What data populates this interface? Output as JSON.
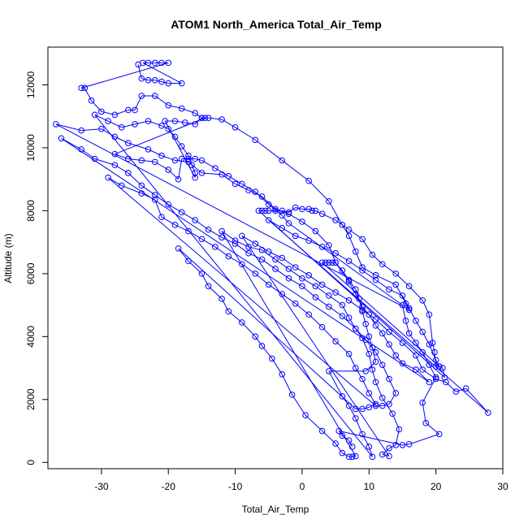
{
  "chart_data": {
    "type": "scatter",
    "title": "ATOM1 North_America Total_Air_Temp",
    "xlabel": "Total_Air_Temp",
    "ylabel": "Altitude (m)",
    "xlim": [
      -38,
      30
    ],
    "ylim": [
      -200,
      13200
    ],
    "x_ticks": [
      -30,
      -20,
      -10,
      0,
      10,
      20,
      30
    ],
    "y_ticks": [
      0,
      2000,
      4000,
      6000,
      8000,
      10000,
      12000
    ],
    "grid": false,
    "legend": "none",
    "series": [
      {
        "color": "#0000ff",
        "marker": "open-circle",
        "line": true,
        "points": [
          [
            -24.5,
            12650
          ],
          [
            -24,
            12200
          ],
          [
            -23,
            12150
          ],
          [
            -22,
            12150
          ],
          [
            -21,
            12100
          ],
          [
            -20,
            12050
          ],
          [
            -18,
            12050
          ],
          [
            -23.8,
            12700
          ],
          [
            -23,
            12700
          ],
          [
            -22,
            12700
          ],
          [
            -21,
            12700
          ],
          [
            -20,
            12700
          ],
          [
            -33,
            11900
          ],
          [
            -32.5,
            11900
          ],
          [
            -31.5,
            11500
          ],
          [
            -30,
            11150
          ],
          [
            -28,
            11050
          ],
          [
            -26,
            11200
          ],
          [
            -25,
            11200
          ],
          [
            -24,
            11650
          ],
          [
            -22,
            11650
          ],
          [
            -20,
            11350
          ],
          [
            -18,
            11250
          ],
          [
            -16,
            11100
          ],
          [
            -15,
            10950
          ],
          [
            -14,
            10950
          ],
          [
            -12,
            10900
          ],
          [
            -10,
            10650
          ],
          [
            -7,
            10250
          ],
          [
            -3,
            9600
          ],
          [
            1,
            8950
          ],
          [
            4,
            8300
          ],
          [
            6,
            7550
          ],
          [
            7,
            7200
          ],
          [
            8,
            6700
          ],
          [
            9,
            6200
          ],
          [
            11,
            5950
          ],
          [
            14,
            5650
          ],
          [
            15.5,
            5050
          ],
          [
            16,
            4850
          ],
          [
            -36.8,
            10750
          ],
          [
            -33,
            10550
          ],
          [
            -30,
            10600
          ],
          [
            -28,
            10350
          ],
          [
            -26,
            10150
          ],
          [
            -23,
            9950
          ],
          [
            -21,
            9750
          ],
          [
            -19,
            9600
          ],
          [
            -17,
            9550
          ],
          [
            -15,
            9200
          ],
          [
            -12,
            9150
          ],
          [
            -10,
            8850
          ],
          [
            -8,
            8650
          ],
          [
            -6,
            8450
          ],
          [
            -4,
            8050
          ],
          [
            -2,
            7900
          ],
          [
            0,
            7650
          ],
          [
            2,
            7350
          ],
          [
            4,
            6900
          ],
          [
            5,
            6350
          ],
          [
            7,
            5750
          ],
          [
            8,
            5350
          ],
          [
            9,
            4950
          ],
          [
            10,
            4700
          ],
          [
            11,
            4350
          ],
          [
            12,
            4100
          ],
          [
            13,
            3750
          ],
          [
            14,
            3400
          ],
          [
            15,
            3150
          ],
          [
            17,
            2950
          ],
          [
            19,
            2550
          ],
          [
            -36,
            10300
          ],
          [
            -33,
            9950
          ],
          [
            -31,
            9650
          ],
          [
            -28,
            9450
          ],
          [
            -26,
            9200
          ],
          [
            -24,
            8800
          ],
          [
            -22,
            8500
          ],
          [
            -20,
            8200
          ],
          [
            -18,
            7950
          ],
          [
            -16,
            7700
          ],
          [
            -14,
            7400
          ],
          [
            -12,
            7150
          ],
          [
            -10,
            6950
          ],
          [
            -8,
            6650
          ],
          [
            -6,
            6450
          ],
          [
            -4,
            6150
          ],
          [
            -2,
            5850
          ],
          [
            0,
            5600
          ],
          [
            2,
            5250
          ],
          [
            4,
            4950
          ],
          [
            6,
            4650
          ],
          [
            8,
            4250
          ],
          [
            9.5,
            3900
          ],
          [
            11,
            3500
          ],
          [
            12,
            3100
          ],
          [
            13,
            2650
          ],
          [
            14,
            2200
          ],
          [
            13,
            1850
          ],
          [
            12,
            1800
          ],
          [
            11,
            1800
          ],
          [
            -29,
            9050
          ],
          [
            -27,
            8800
          ],
          [
            -24,
            8550
          ],
          [
            -22,
            8350
          ],
          [
            -21,
            7800
          ],
          [
            -19,
            7550
          ],
          [
            -17,
            7350
          ],
          [
            -15,
            7100
          ],
          [
            -13,
            6850
          ],
          [
            -11,
            6550
          ],
          [
            -9,
            6300
          ],
          [
            -7,
            6000
          ],
          [
            -5,
            5650
          ],
          [
            -3,
            5350
          ],
          [
            -1,
            5050
          ],
          [
            1,
            4700
          ],
          [
            3,
            4300
          ],
          [
            5,
            3850
          ],
          [
            7,
            3450
          ],
          [
            8,
            3000
          ],
          [
            9,
            2650
          ],
          [
            10,
            2200
          ],
          [
            11,
            1850
          ],
          [
            10,
            1750
          ],
          [
            9,
            1700
          ],
          [
            8,
            1700
          ],
          [
            -18.5,
            6800
          ],
          [
            -17,
            6400
          ],
          [
            -15,
            6000
          ],
          [
            -14,
            5600
          ],
          [
            -12,
            5200
          ],
          [
            -11,
            4800
          ],
          [
            -9,
            4450
          ],
          [
            -7,
            4000
          ],
          [
            -6,
            3700
          ],
          [
            -4.5,
            3300
          ],
          [
            -3,
            2800
          ],
          [
            -1.5,
            2150
          ],
          [
            0.5,
            1500
          ],
          [
            3,
            1000
          ],
          [
            5,
            600
          ],
          [
            6,
            300
          ],
          [
            7,
            180
          ],
          [
            7.5,
            180
          ],
          [
            8,
            200
          ],
          [
            -12,
            7350
          ],
          [
            -10,
            7050
          ],
          [
            -8,
            6850
          ],
          [
            -6,
            6750
          ],
          [
            -4,
            6450
          ],
          [
            -2,
            6150
          ],
          [
            0,
            5850
          ],
          [
            2,
            5600
          ],
          [
            4,
            5300
          ],
          [
            6,
            5000
          ],
          [
            7,
            4600
          ],
          [
            8,
            4250
          ],
          [
            9,
            3950
          ],
          [
            10,
            3450
          ],
          [
            10.5,
            2950
          ],
          [
            11,
            2550
          ],
          [
            12,
            2050
          ],
          [
            13.5,
            1550
          ],
          [
            14.5,
            1050
          ],
          [
            14,
            550
          ],
          [
            13,
            450
          ],
          [
            12,
            250
          ],
          [
            13,
            200
          ],
          [
            -9,
            7200
          ],
          [
            -7,
            6950
          ],
          [
            -5,
            6700
          ],
          [
            -3,
            6500
          ],
          [
            -1,
            6200
          ],
          [
            1,
            5950
          ],
          [
            3,
            5650
          ],
          [
            5,
            5400
          ],
          [
            7,
            5150
          ],
          [
            9,
            4850
          ],
          [
            11,
            4550
          ],
          [
            13,
            4150
          ],
          [
            15,
            3800
          ],
          [
            17,
            3400
          ],
          [
            18,
            2950
          ],
          [
            20,
            2650
          ],
          [
            21.5,
            2550
          ],
          [
            23,
            2250
          ],
          [
            24.5,
            2350
          ],
          [
            27.8,
            1580
          ],
          [
            -5,
            7700
          ],
          [
            -3,
            7450
          ],
          [
            -1,
            7200
          ],
          [
            1,
            7050
          ],
          [
            3,
            6850
          ],
          [
            5,
            6650
          ],
          [
            7,
            6400
          ],
          [
            9,
            6100
          ],
          [
            11,
            5800
          ],
          [
            13,
            5500
          ],
          [
            15,
            5300
          ],
          [
            16,
            4900
          ],
          [
            17,
            4500
          ],
          [
            18,
            4150
          ],
          [
            19,
            3750
          ],
          [
            20,
            3250
          ],
          [
            20.5,
            3050
          ],
          [
            21,
            3000
          ],
          [
            21.3,
            2700
          ],
          [
            -6.5,
            8000
          ],
          [
            -6,
            8000
          ],
          [
            -5.5,
            8000
          ],
          [
            -5,
            8000
          ],
          [
            -4,
            8000
          ],
          [
            -3,
            8000
          ],
          [
            -2,
            7950
          ],
          [
            -1,
            8100
          ],
          [
            0,
            8050
          ],
          [
            1,
            8050
          ],
          [
            1.5,
            8000
          ],
          [
            2,
            8000
          ],
          [
            3,
            7900
          ],
          [
            5,
            7700
          ],
          [
            7,
            7400
          ],
          [
            9,
            7100
          ],
          [
            10.5,
            6600
          ],
          [
            12,
            6300
          ],
          [
            14,
            6000
          ],
          [
            16,
            5600
          ],
          [
            18,
            5150
          ],
          [
            19,
            4700
          ],
          [
            19.5,
            3800
          ],
          [
            19.8,
            3500
          ],
          [
            20,
            3050
          ],
          [
            20.5,
            3050
          ],
          [
            3,
            6350
          ],
          [
            3.5,
            6350
          ],
          [
            4,
            6350
          ],
          [
            4.5,
            6350
          ],
          [
            5,
            6350
          ],
          [
            6,
            6100
          ],
          [
            7,
            5800
          ],
          [
            8,
            5500
          ],
          [
            8.5,
            5200
          ],
          [
            9,
            4800
          ],
          [
            9.5,
            4400
          ],
          [
            10,
            4000
          ],
          [
            10.5,
            3650
          ],
          [
            11,
            3200
          ],
          [
            9.5,
            2900
          ],
          [
            4,
            2900
          ],
          [
            6,
            2100
          ],
          [
            7,
            1800
          ],
          [
            8,
            1400
          ],
          [
            9,
            900
          ],
          [
            10,
            500
          ],
          [
            10.5,
            180
          ],
          [
            -31,
            11050
          ],
          [
            -29,
            10850
          ],
          [
            -27,
            10650
          ],
          [
            -25,
            10750
          ],
          [
            -23,
            10850
          ],
          [
            -21,
            10700
          ],
          [
            -20,
            10600
          ],
          [
            -19,
            10350
          ],
          [
            -18,
            10050
          ],
          [
            -17,
            9750
          ],
          [
            -16.5,
            9450
          ],
          [
            -16,
            9200
          ],
          [
            -16,
            9050
          ],
          [
            -20.5,
            10850
          ],
          [
            -19,
            10850
          ],
          [
            -17.5,
            10800
          ],
          [
            -16,
            10750
          ],
          [
            -15,
            10950
          ],
          [
            -14.5,
            10950
          ],
          [
            -28,
            9800
          ],
          [
            -26,
            9650
          ],
          [
            -24,
            9600
          ],
          [
            -22,
            9550
          ],
          [
            -20,
            9300
          ],
          [
            -18.5,
            9000
          ],
          [
            -18,
            9650
          ],
          [
            -17,
            9650
          ],
          [
            -16,
            9650
          ],
          [
            -15,
            9600
          ],
          [
            -13,
            9350
          ],
          [
            -11,
            9100
          ],
          [
            -9,
            8850
          ],
          [
            -7,
            8600
          ],
          [
            -5,
            8200
          ],
          [
            -3,
            7850
          ],
          [
            -2,
            7600
          ],
          [
            15,
            5000
          ],
          [
            15.5,
            4500
          ],
          [
            16,
            4100
          ],
          [
            17,
            3800
          ],
          [
            18,
            3500
          ],
          [
            19,
            3100
          ],
          [
            20,
            2700
          ],
          [
            18,
            1900
          ],
          [
            18.5,
            1250
          ],
          [
            20.5,
            900
          ],
          [
            16,
            580
          ],
          [
            15,
            550
          ],
          [
            5.5,
            1000
          ],
          [
            6,
            850
          ],
          [
            7,
            700
          ],
          [
            7.5,
            500
          ]
        ]
      }
    ]
  }
}
